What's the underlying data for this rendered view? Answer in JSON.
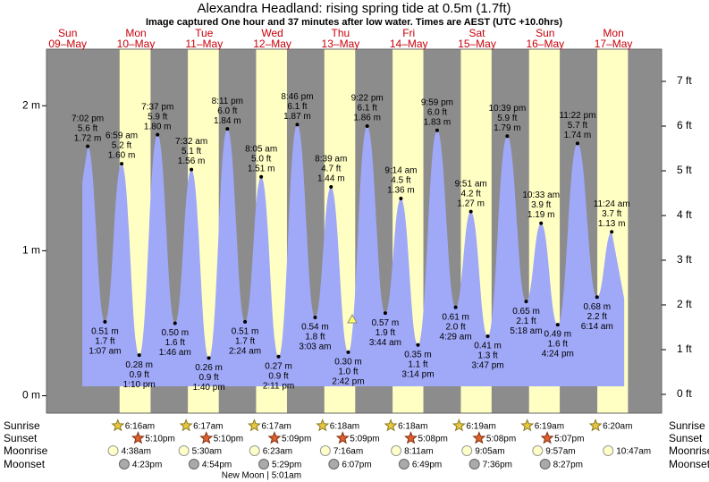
{
  "chart_data": {
    "type": "tide",
    "title": "Alexandra Headland: rising  spring tide at 0.5m (1.7ft)",
    "subtitle": "Image captured One hour and 37 minutes after low water. Times are AEST (UTC +10.0hrs)",
    "ylim": [
      -0.12,
      2.39
    ],
    "yticks": [
      {
        "value": 0,
        "label": "0 m"
      },
      {
        "value": 1,
        "label": "1 m"
      },
      {
        "value": 2,
        "label": "2 m"
      }
    ],
    "y2lim": [
      -0.42,
      7.72
    ],
    "y2ticks": [
      {
        "value": 0,
        "label": "0 ft"
      },
      {
        "value": 1,
        "label": "1 ft"
      },
      {
        "value": 2,
        "label": "2 ft"
      },
      {
        "value": 3,
        "label": "3 ft"
      },
      {
        "value": 4,
        "label": "4 ft"
      },
      {
        "value": 5,
        "label": "5 ft"
      },
      {
        "value": 6,
        "label": "6 ft"
      },
      {
        "value": 7,
        "label": "7 ft"
      }
    ],
    "row_labels": {
      "sunrise": "Sunrise",
      "sunset": "Sunset",
      "moonrise": "Moonrise",
      "moonset": "Moonset"
    },
    "days": [
      {
        "weekday": "Sun",
        "date": "09–May",
        "tides": [
          {
            "time": "7:02 pm",
            "ft": "5.6 ft",
            "m": 1.72,
            "m_label": "1.72 m"
          }
        ]
      },
      {
        "weekday": "Mon",
        "date": "10–May",
        "sunrise": "6:16am",
        "sunset": "5:10pm",
        "moonrise": "4:38am",
        "moonset": "4:23pm",
        "tides": [
          {
            "time": "1:07 am",
            "ft": "1.7 ft",
            "m": 0.51,
            "m_label": "0.51 m"
          },
          {
            "time": "6:59 am",
            "ft": "5.2 ft",
            "m": 1.6,
            "m_label": "1.60 m"
          },
          {
            "time": "1:10 pm",
            "ft": "0.9 ft",
            "m": 0.28,
            "m_label": "0.28 m"
          },
          {
            "time": "7:37 pm",
            "ft": "5.9 ft",
            "m": 1.8,
            "m_label": "1.80 m"
          }
        ]
      },
      {
        "weekday": "Tue",
        "date": "11–May",
        "sunrise": "6:17am",
        "sunset": "5:10pm",
        "moonrise": "5:30am",
        "moonset": "4:54pm",
        "tides": [
          {
            "time": "1:46 am",
            "ft": "1.6 ft",
            "m": 0.5,
            "m_label": "0.50 m"
          },
          {
            "time": "7:32 am",
            "ft": "5.1 ft",
            "m": 1.56,
            "m_label": "1.56 m"
          },
          {
            "time": "1:40 pm",
            "ft": "0.9 ft",
            "m": 0.26,
            "m_label": "0.26 m"
          },
          {
            "time": "8:11 pm",
            "ft": "6.0 ft",
            "m": 1.84,
            "m_label": "1.84 m"
          }
        ]
      },
      {
        "weekday": "Wed",
        "date": "12–May",
        "sunrise": "6:17am",
        "sunset": "5:09pm",
        "moonrise": "6:23am",
        "moonset": "5:29pm",
        "moon_phase": "New Moon | 5:01am",
        "tides": [
          {
            "time": "2:24 am",
            "ft": "1.7 ft",
            "m": 0.51,
            "m_label": "0.51 m"
          },
          {
            "time": "8:05 am",
            "ft": "5.0 ft",
            "m": 1.51,
            "m_label": "1.51 m"
          },
          {
            "time": "2:11 pm",
            "ft": "0.9 ft",
            "m": 0.27,
            "m_label": "0.27 m"
          },
          {
            "time": "8:46 pm",
            "ft": "6.1 ft",
            "m": 1.87,
            "m_label": "1.87 m"
          }
        ]
      },
      {
        "weekday": "Thu",
        "date": "13–May",
        "sunrise": "6:18am",
        "sunset": "5:09pm",
        "moonrise": "7:16am",
        "moonset": "6:07pm",
        "tides": [
          {
            "time": "3:03 am",
            "ft": "1.8 ft",
            "m": 0.54,
            "m_label": "0.54 m"
          },
          {
            "time": "8:39 am",
            "ft": "4.7 ft",
            "m": 1.44,
            "m_label": "1.44 m"
          },
          {
            "time": "2:42 pm",
            "ft": "1.0 ft",
            "m": 0.3,
            "m_label": "0.30 m"
          },
          {
            "time": "9:22 pm",
            "ft": "6.1 ft",
            "m": 1.86,
            "m_label": "1.86 m"
          }
        ]
      },
      {
        "weekday": "Fri",
        "date": "14–May",
        "sunrise": "6:18am",
        "sunset": "5:08pm",
        "moonrise": "8:11am",
        "moonset": "6:49pm",
        "tides": [
          {
            "time": "3:44 am",
            "ft": "1.9 ft",
            "m": 0.57,
            "m_label": "0.57 m"
          },
          {
            "time": "9:14 am",
            "ft": "4.5 ft",
            "m": 1.36,
            "m_label": "1.36 m"
          },
          {
            "time": "3:14 pm",
            "ft": "1.1 ft",
            "m": 0.35,
            "m_label": "0.35 m"
          },
          {
            "time": "9:59 pm",
            "ft": "6.0 ft",
            "m": 1.83,
            "m_label": "1.83 m"
          }
        ]
      },
      {
        "weekday": "Sat",
        "date": "15–May",
        "sunrise": "6:19am",
        "sunset": "5:08pm",
        "moonrise": "9:05am",
        "moonset": "7:36pm",
        "tides": [
          {
            "time": "4:29 am",
            "ft": "2.0 ft",
            "m": 0.61,
            "m_label": "0.61 m"
          },
          {
            "time": "9:51 am",
            "ft": "4.2 ft",
            "m": 1.27,
            "m_label": "1.27 m"
          },
          {
            "time": "3:47 pm",
            "ft": "1.3 ft",
            "m": 0.41,
            "m_label": "0.41 m"
          },
          {
            "time": "10:39 pm",
            "ft": "5.9 ft",
            "m": 1.79,
            "m_label": "1.79 m"
          }
        ]
      },
      {
        "weekday": "Sun",
        "date": "16–May",
        "sunrise": "6:19am",
        "sunset": "5:07pm",
        "moonrise": "9:57am",
        "moonset": "8:27pm",
        "tides": [
          {
            "time": "5:18 am",
            "ft": "2.1 ft",
            "m": 0.65,
            "m_label": "0.65 m"
          },
          {
            "time": "10:33 am",
            "ft": "3.9 ft",
            "m": 1.19,
            "m_label": "1.19 m"
          },
          {
            "time": "4:24 pm",
            "ft": "1.6 ft",
            "m": 0.49,
            "m_label": "0.49 m"
          },
          {
            "time": "11:22 pm",
            "ft": "5.7 ft",
            "m": 1.74,
            "m_label": "1.74 m"
          }
        ]
      },
      {
        "weekday": "Mon",
        "date": "17–May",
        "sunrise": "6:20am",
        "moonrise": "10:47am",
        "tides": [
          {
            "time": "6:14 am",
            "ft": "2.2 ft",
            "m": 0.68,
            "m_label": "0.68 m"
          },
          {
            "time": "11:24 am",
            "ft": "3.7 ft",
            "m": 1.13,
            "m_label": "1.13 m"
          }
        ]
      }
    ]
  }
}
